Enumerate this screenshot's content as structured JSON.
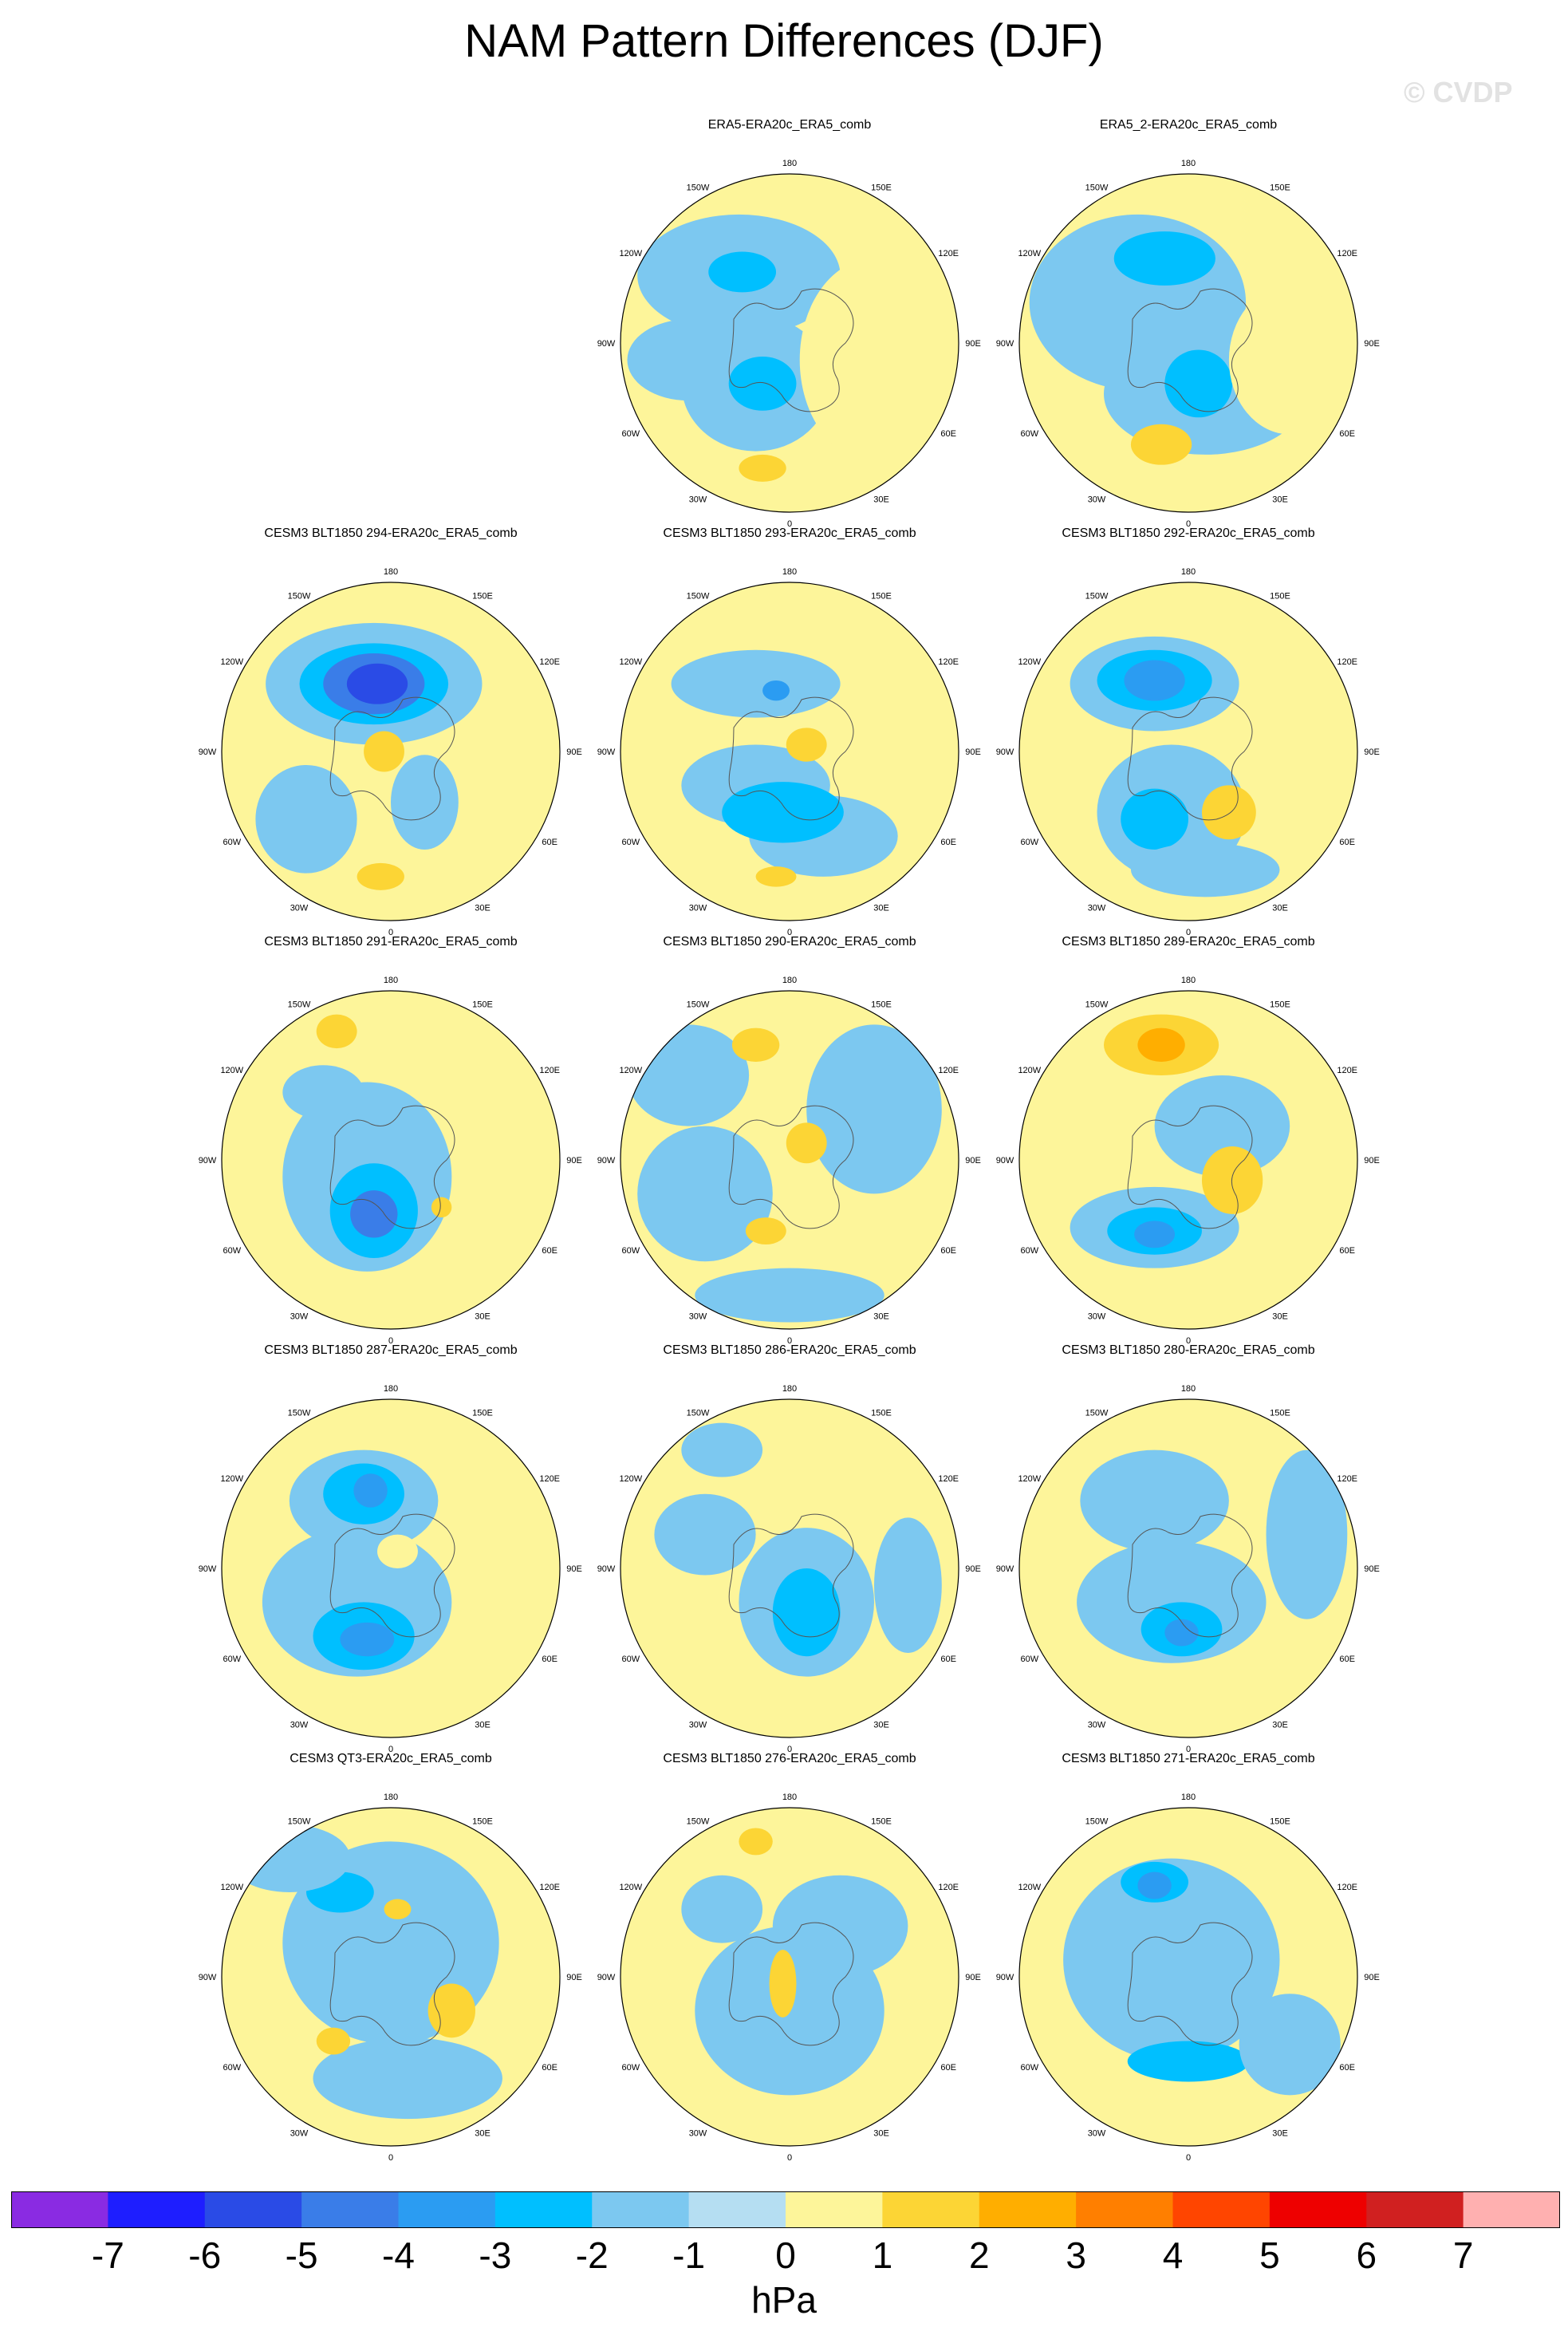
{
  "title": "NAM Pattern Differences (DJF)",
  "watermark": "© CVDP",
  "units": "hPa",
  "lon_labels": [
    "180",
    "150E",
    "120E",
    "90E",
    "60E",
    "30E",
    "0",
    "30W",
    "60W",
    "90W",
    "120W",
    "150W"
  ],
  "colorbar": {
    "colors": [
      "#8a2be2",
      "#1e1eff",
      "#2a4be6",
      "#3a7de8",
      "#2b9cf2",
      "#00bfff",
      "#7cc8f0",
      "#b5def2",
      "#fdf59a",
      "#fcd535",
      "#ffae00",
      "#ff7f00",
      "#ff4500",
      "#ee0000",
      "#d02020",
      "#ffb0b0"
    ],
    "labels": [
      "-7",
      "-6",
      "-5",
      "-4",
      "-3",
      "-2",
      "-1",
      "0",
      "1",
      "2",
      "3",
      "4",
      "5",
      "6",
      "7"
    ]
  },
  "panels": [
    {
      "title": "ERA5-ERA20c_ERA5_comb",
      "blobs": [
        [
          "b",
          0.35,
          0.3,
          0.3,
          0.18,
          1
        ],
        [
          "b",
          0.4,
          0.62,
          0.22,
          0.2,
          1
        ],
        [
          "b",
          0.2,
          0.55,
          0.18,
          0.12,
          1
        ],
        [
          "b",
          0.36,
          0.29,
          0.1,
          0.06,
          2
        ],
        [
          "b",
          0.42,
          0.62,
          0.1,
          0.08,
          2
        ],
        [
          "y",
          0.42,
          0.87,
          0.07,
          0.04,
          2
        ],
        [
          "y",
          0.75,
          0.55,
          0.22,
          0.3,
          1
        ]
      ]
    },
    {
      "title": "ERA5_2-ERA20c_ERA5_comb",
      "blobs": [
        [
          "b",
          0.35,
          0.38,
          0.32,
          0.26,
          1
        ],
        [
          "b",
          0.55,
          0.65,
          0.3,
          0.18,
          1
        ],
        [
          "b",
          0.43,
          0.25,
          0.15,
          0.08,
          2
        ],
        [
          "b",
          0.53,
          0.62,
          0.1,
          0.1,
          2
        ],
        [
          "y",
          0.42,
          0.8,
          0.09,
          0.06,
          2
        ],
        [
          "y",
          0.8,
          0.55,
          0.18,
          0.22,
          1
        ]
      ]
    },
    {
      "title": "CESM3 BLT1850 294-ERA20c_ERA5_comb",
      "blobs": [
        [
          "b",
          0.45,
          0.3,
          0.32,
          0.18,
          1
        ],
        [
          "b",
          0.45,
          0.3,
          0.22,
          0.12,
          2
        ],
        [
          "b",
          0.45,
          0.3,
          0.15,
          0.09,
          4
        ],
        [
          "b",
          0.46,
          0.3,
          0.09,
          0.06,
          5
        ],
        [
          "b",
          0.25,
          0.7,
          0.15,
          0.16,
          1
        ],
        [
          "b",
          0.6,
          0.65,
          0.1,
          0.14,
          1
        ],
        [
          "y",
          0.48,
          0.5,
          0.06,
          0.06,
          2
        ],
        [
          "y",
          0.47,
          0.87,
          0.07,
          0.04,
          2
        ]
      ]
    },
    {
      "title": "CESM3 BLT1850 293-ERA20c_ERA5_comb",
      "blobs": [
        [
          "b",
          0.4,
          0.3,
          0.25,
          0.1,
          1
        ],
        [
          "b",
          0.4,
          0.6,
          0.22,
          0.12,
          1
        ],
        [
          "b",
          0.6,
          0.75,
          0.22,
          0.12,
          1
        ],
        [
          "b",
          0.48,
          0.68,
          0.18,
          0.09,
          2
        ],
        [
          "b",
          0.46,
          0.32,
          0.04,
          0.03,
          3
        ],
        [
          "y",
          0.55,
          0.48,
          0.06,
          0.05,
          2
        ],
        [
          "y",
          0.46,
          0.87,
          0.06,
          0.03,
          2
        ]
      ]
    },
    {
      "title": "CESM3 BLT1850 292-ERA20c_ERA5_comb",
      "blobs": [
        [
          "b",
          0.4,
          0.3,
          0.25,
          0.14,
          1
        ],
        [
          "b",
          0.4,
          0.29,
          0.17,
          0.09,
          2
        ],
        [
          "b",
          0.4,
          0.29,
          0.09,
          0.06,
          3
        ],
        [
          "b",
          0.45,
          0.68,
          0.22,
          0.2,
          1
        ],
        [
          "b",
          0.4,
          0.7,
          0.1,
          0.09,
          2
        ],
        [
          "b",
          0.55,
          0.85,
          0.22,
          0.08,
          1
        ],
        [
          "y",
          0.62,
          0.68,
          0.08,
          0.08,
          2
        ]
      ]
    },
    {
      "title": "CESM3 BLT1850 291-ERA20c_ERA5_comb",
      "blobs": [
        [
          "b",
          0.43,
          0.55,
          0.25,
          0.28,
          1
        ],
        [
          "b",
          0.45,
          0.65,
          0.13,
          0.14,
          2
        ],
        [
          "b",
          0.45,
          0.66,
          0.07,
          0.07,
          4
        ],
        [
          "b",
          0.3,
          0.3,
          0.12,
          0.08,
          1
        ],
        [
          "y",
          0.34,
          0.12,
          0.06,
          0.05,
          2
        ],
        [
          "y",
          0.65,
          0.64,
          0.03,
          0.03,
          2
        ]
      ]
    },
    {
      "title": "CESM3 BLT1850 290-ERA20c_ERA5_comb",
      "blobs": [
        [
          "b",
          0.75,
          0.35,
          0.2,
          0.25,
          1
        ],
        [
          "b",
          0.25,
          0.6,
          0.2,
          0.2,
          1
        ],
        [
          "b",
          0.2,
          0.25,
          0.18,
          0.15,
          1
        ],
        [
          "b",
          0.5,
          0.9,
          0.28,
          0.08,
          1
        ],
        [
          "y",
          0.4,
          0.16,
          0.07,
          0.05,
          2
        ],
        [
          "y",
          0.55,
          0.45,
          0.06,
          0.06,
          2
        ],
        [
          "y",
          0.43,
          0.71,
          0.06,
          0.04,
          2
        ]
      ]
    },
    {
      "title": "CESM3 BLT1850 289-ERA20c_ERA5_comb",
      "blobs": [
        [
          "y",
          0.42,
          0.16,
          0.17,
          0.09,
          2
        ],
        [
          "y",
          0.42,
          0.16,
          0.07,
          0.05,
          3
        ],
        [
          "b",
          0.4,
          0.7,
          0.25,
          0.12,
          1
        ],
        [
          "b",
          0.4,
          0.71,
          0.14,
          0.07,
          2
        ],
        [
          "b",
          0.4,
          0.72,
          0.06,
          0.04,
          3
        ],
        [
          "b",
          0.6,
          0.4,
          0.2,
          0.15,
          1
        ],
        [
          "y",
          0.63,
          0.56,
          0.09,
          0.1,
          2
        ]
      ]
    },
    {
      "title": "CESM3 BLT1850 287-ERA20c_ERA5_comb",
      "blobs": [
        [
          "b",
          0.42,
          0.3,
          0.22,
          0.15,
          1
        ],
        [
          "b",
          0.42,
          0.28,
          0.12,
          0.09,
          2
        ],
        [
          "b",
          0.44,
          0.27,
          0.05,
          0.05,
          3
        ],
        [
          "b",
          0.4,
          0.6,
          0.28,
          0.22,
          1
        ],
        [
          "b",
          0.42,
          0.7,
          0.15,
          0.1,
          2
        ],
        [
          "b",
          0.43,
          0.71,
          0.08,
          0.05,
          3
        ],
        [
          "y",
          0.52,
          0.45,
          0.06,
          0.05,
          1
        ]
      ]
    },
    {
      "title": "CESM3 BLT1850 286-ERA20c_ERA5_comb",
      "blobs": [
        [
          "b",
          0.55,
          0.6,
          0.2,
          0.22,
          1
        ],
        [
          "b",
          0.55,
          0.63,
          0.1,
          0.13,
          2
        ],
        [
          "b",
          0.25,
          0.4,
          0.15,
          0.12,
          1
        ],
        [
          "b",
          0.3,
          0.15,
          0.12,
          0.08,
          1
        ],
        [
          "b",
          0.85,
          0.55,
          0.1,
          0.2,
          1
        ]
      ]
    },
    {
      "title": "CESM3 BLT1850 280-ERA20c_ERA5_comb",
      "blobs": [
        [
          "b",
          0.45,
          0.6,
          0.28,
          0.18,
          1
        ],
        [
          "b",
          0.48,
          0.68,
          0.12,
          0.08,
          2
        ],
        [
          "b",
          0.48,
          0.69,
          0.05,
          0.04,
          3
        ],
        [
          "b",
          0.4,
          0.3,
          0.22,
          0.15,
          1
        ],
        [
          "b",
          0.85,
          0.4,
          0.12,
          0.25,
          1
        ]
      ]
    },
    {
      "title": "CESM3 QT3-ERA20c_ERA5_comb",
      "blobs": [
        [
          "b",
          0.5,
          0.4,
          0.32,
          0.3,
          1
        ],
        [
          "b",
          0.35,
          0.25,
          0.1,
          0.06,
          2
        ],
        [
          "b",
          0.2,
          0.15,
          0.18,
          0.1,
          1
        ],
        [
          "b",
          0.55,
          0.8,
          0.28,
          0.12,
          1
        ],
        [
          "y",
          0.68,
          0.6,
          0.07,
          0.08,
          2
        ],
        [
          "y",
          0.33,
          0.69,
          0.05,
          0.04,
          2
        ],
        [
          "y",
          0.52,
          0.3,
          0.04,
          0.03,
          2
        ]
      ]
    },
    {
      "title": "CESM3 BLT1850 276-ERA20c_ERA5_comb",
      "blobs": [
        [
          "b",
          0.5,
          0.6,
          0.28,
          0.25,
          1
        ],
        [
          "b",
          0.65,
          0.35,
          0.2,
          0.15,
          1
        ],
        [
          "b",
          0.3,
          0.3,
          0.12,
          0.1,
          1
        ],
        [
          "y",
          0.4,
          0.1,
          0.05,
          0.04,
          2
        ],
        [
          "y",
          0.48,
          0.52,
          0.04,
          0.1,
          2
        ]
      ]
    },
    {
      "title": "CESM3 BLT1850 271-ERA20c_ERA5_comb",
      "blobs": [
        [
          "b",
          0.45,
          0.45,
          0.32,
          0.3,
          1
        ],
        [
          "b",
          0.4,
          0.22,
          0.1,
          0.06,
          2
        ],
        [
          "b",
          0.4,
          0.23,
          0.05,
          0.04,
          3
        ],
        [
          "b",
          0.5,
          0.75,
          0.18,
          0.06,
          2
        ],
        [
          "b",
          0.8,
          0.7,
          0.15,
          0.15,
          1
        ]
      ]
    }
  ]
}
